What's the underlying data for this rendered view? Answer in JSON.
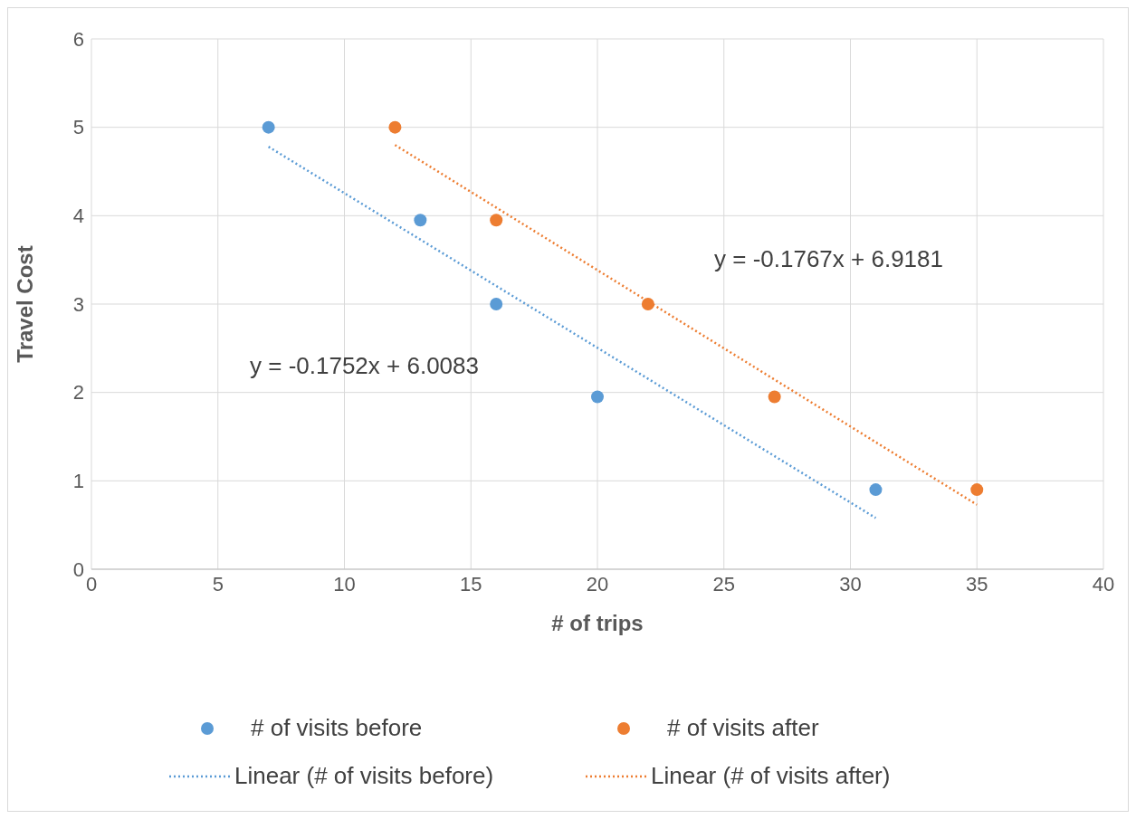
{
  "chart_data": {
    "type": "scatter",
    "xlabel": "# of trips",
    "ylabel": "Travel Cost",
    "series": [
      {
        "name": "# of visits before",
        "type": "scatter",
        "color": "#5b9bd5",
        "marker": "circle",
        "x": [
          7,
          13,
          16,
          20,
          31
        ],
        "values": [
          5,
          3.95,
          3,
          1.95,
          0.9
        ]
      },
      {
        "name": "# of visits after",
        "type": "scatter",
        "color": "#ed7d31",
        "marker": "circle",
        "x": [
          12,
          16,
          22,
          27,
          35
        ],
        "values": [
          5,
          3.95,
          3,
          1.95,
          0.9
        ]
      },
      {
        "name": "Linear (# of visits before)",
        "type": "line",
        "color": "#5b9bd5",
        "line_style": "dotted",
        "x": [
          7,
          31
        ],
        "values": [
          4.78,
          0.58
        ]
      },
      {
        "name": "Linear (# of visits after)",
        "type": "line",
        "color": "#ed7d31",
        "line_style": "dotted",
        "x": [
          12,
          35
        ],
        "values": [
          4.8,
          0.73
        ]
      }
    ],
    "annotations": [
      "y = -0.1767x + 6.9181",
      "y = -0.1752x + 6.0083"
    ],
    "xlim": [
      0,
      40
    ],
    "xticks": [
      0,
      5,
      10,
      15,
      20,
      25,
      30,
      35,
      40
    ],
    "ylim": [
      0,
      6
    ],
    "yticks": [
      0,
      1,
      2,
      3,
      4,
      5,
      6
    ],
    "grid": true,
    "legend": "bottom"
  }
}
